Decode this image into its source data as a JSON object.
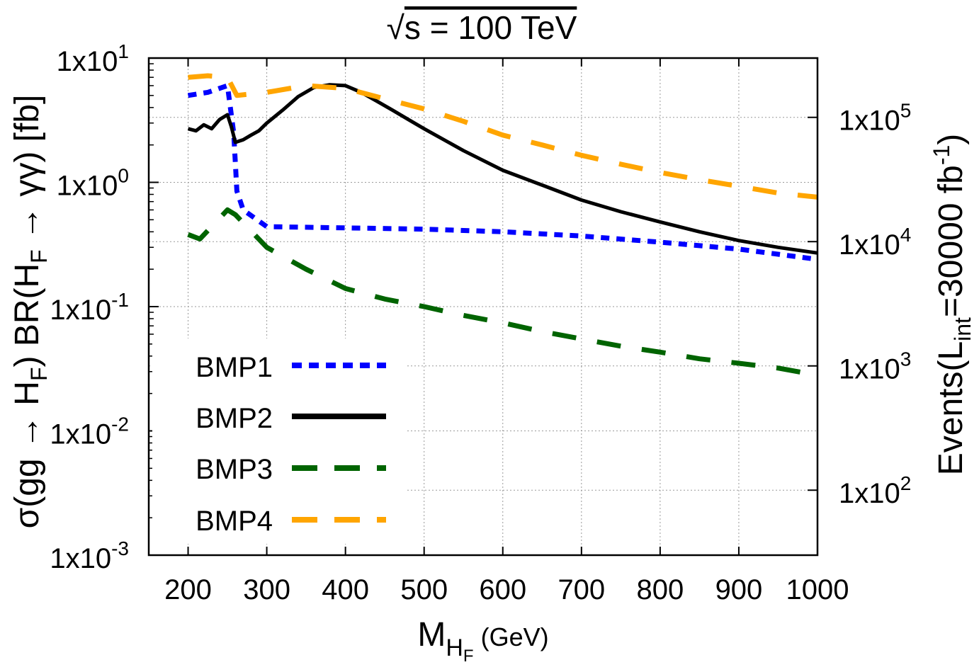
{
  "chart_data": {
    "type": "line",
    "title": "√s = 100 TeV",
    "title_sqrt": "√",
    "title_text": "s = 100 TeV",
    "xlabel": {
      "main": "M",
      "sub": "H",
      "subsub": "F",
      "unit": "(GeV)"
    },
    "ylabel_left": "σ(gg → HF) BR(HF → γγ) [fb]",
    "ylabel_left_parts": [
      "σ(gg → H",
      "F",
      ") BR(H",
      "F",
      " → γγ) [fb]"
    ],
    "ylabel_right": "Events(Lint=30000 fb-1)",
    "ylabel_right_parts": [
      "Events(L",
      "int",
      "=30000 fb",
      "-1",
      ")"
    ],
    "xlim": [
      150,
      1000
    ],
    "ylim_log10": [
      -3,
      1
    ],
    "y2_scale": 30000,
    "grid": true,
    "legend_position": "bottom-left",
    "x_ticks": [
      {
        "value": 200,
        "label": "200"
      },
      {
        "value": 300,
        "label": "300"
      },
      {
        "value": 400,
        "label": "400"
      },
      {
        "value": 500,
        "label": "500"
      },
      {
        "value": 600,
        "label": "600"
      },
      {
        "value": 700,
        "label": "700"
      },
      {
        "value": 800,
        "label": "800"
      },
      {
        "value": 900,
        "label": "900"
      },
      {
        "value": 1000,
        "label": "1000"
      }
    ],
    "y_ticks": [
      {
        "exp": 1,
        "base": "1x10",
        "sup": "1"
      },
      {
        "exp": 0,
        "base": "1x10",
        "sup": "0"
      },
      {
        "exp": -1,
        "base": "1x10",
        "sup": "-1"
      },
      {
        "exp": -2,
        "base": "1x10",
        "sup": "-2"
      },
      {
        "exp": -3,
        "base": "1x10",
        "sup": "-3"
      }
    ],
    "y2_ticks": [
      {
        "exp": 5,
        "base": "1x10",
        "sup": "5"
      },
      {
        "exp": 4,
        "base": "1x10",
        "sup": "4"
      },
      {
        "exp": 3,
        "base": "1x10",
        "sup": "3"
      },
      {
        "exp": 2,
        "base": "1x10",
        "sup": "2"
      }
    ],
    "series": [
      {
        "name": "BMP1",
        "color": "#0000ff",
        "style": "dotted",
        "x": [
          200,
          225,
          250,
          258,
          262,
          270,
          300,
          400,
          500,
          600,
          700,
          800,
          900,
          1000
        ],
        "y": [
          5.0,
          5.3,
          6.0,
          2.5,
          0.85,
          0.6,
          0.44,
          0.43,
          0.42,
          0.4,
          0.37,
          0.33,
          0.29,
          0.24
        ]
      },
      {
        "name": "BMP2",
        "color": "#000000",
        "style": "solid",
        "x": [
          200,
          210,
          220,
          230,
          240,
          250,
          255,
          260,
          270,
          280,
          290,
          300,
          320,
          340,
          360,
          380,
          400,
          420,
          440,
          460,
          480,
          500,
          550,
          600,
          650,
          700,
          750,
          800,
          850,
          900,
          950,
          1000
        ],
        "y": [
          2.7,
          2.6,
          2.9,
          2.7,
          3.2,
          3.5,
          2.8,
          2.1,
          2.2,
          2.4,
          2.6,
          3.0,
          3.8,
          4.9,
          5.8,
          6.1,
          6.0,
          5.3,
          4.5,
          3.8,
          3.2,
          2.7,
          1.8,
          1.25,
          0.95,
          0.72,
          0.58,
          0.48,
          0.4,
          0.34,
          0.3,
          0.27
        ]
      },
      {
        "name": "BMP3",
        "color": "#006400",
        "style": "dashed",
        "x": [
          200,
          215,
          250,
          260,
          300,
          350,
          400,
          450,
          500,
          550,
          600,
          650,
          700,
          750,
          800,
          850,
          900,
          950,
          1000
        ],
        "y": [
          0.38,
          0.35,
          0.6,
          0.55,
          0.3,
          0.2,
          0.14,
          0.115,
          0.1,
          0.085,
          0.074,
          0.063,
          0.055,
          0.048,
          0.043,
          0.038,
          0.035,
          0.032,
          0.028
        ]
      },
      {
        "name": "BMP4",
        "color": "#ffa500",
        "style": "dashed",
        "x": [
          200,
          225,
          250,
          262,
          300,
          350,
          400,
          450,
          500,
          550,
          600,
          650,
          700,
          750,
          800,
          850,
          900,
          950,
          1000
        ],
        "y": [
          7.0,
          7.2,
          7.0,
          5.0,
          5.3,
          6.0,
          5.7,
          4.7,
          3.9,
          3.1,
          2.4,
          2.0,
          1.65,
          1.4,
          1.2,
          1.05,
          0.93,
          0.82,
          0.76
        ]
      }
    ]
  }
}
